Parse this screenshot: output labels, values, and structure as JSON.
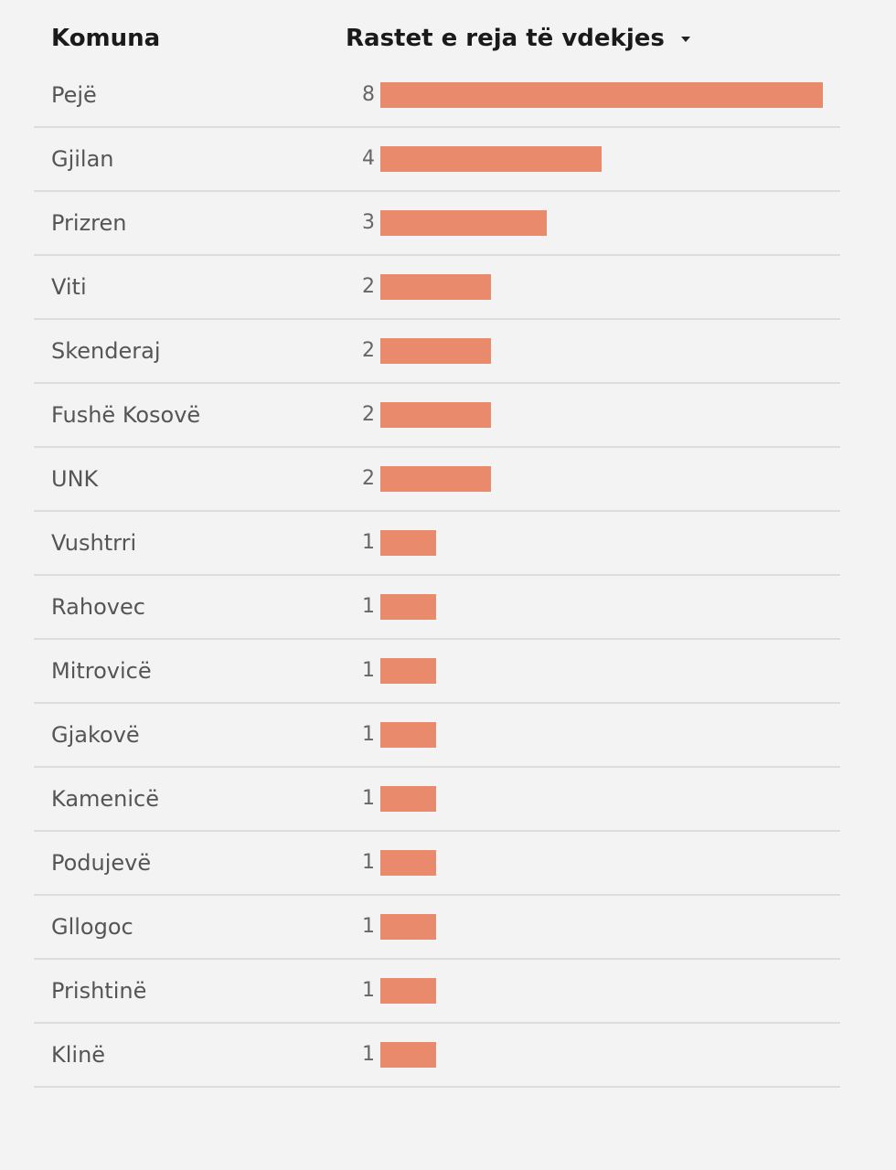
{
  "header": {
    "col_name": "Komuna",
    "col_value": "Rastet e reja të vdekjes"
  },
  "colors": {
    "bar": "#ea8a6c"
  },
  "chart_data": {
    "type": "bar",
    "orientation": "horizontal",
    "xlabel": "Rastet e reja të vdekjes",
    "ylabel": "Komuna",
    "categories": [
      "Pejë",
      "Gjilan",
      "Prizren",
      "Viti",
      "Skenderaj",
      "Fushë Kosovë",
      "UNK",
      "Vushtrri",
      "Rahovec",
      "Mitrovicë",
      "Gjakovë",
      "Kamenicë",
      "Podujevë",
      "Gllogoc",
      "Prishtinë",
      "Klinë"
    ],
    "values": [
      8,
      4,
      3,
      2,
      2,
      2,
      2,
      1,
      1,
      1,
      1,
      1,
      1,
      1,
      1,
      1
    ],
    "xlim": [
      0,
      8
    ],
    "sort": "descending"
  }
}
